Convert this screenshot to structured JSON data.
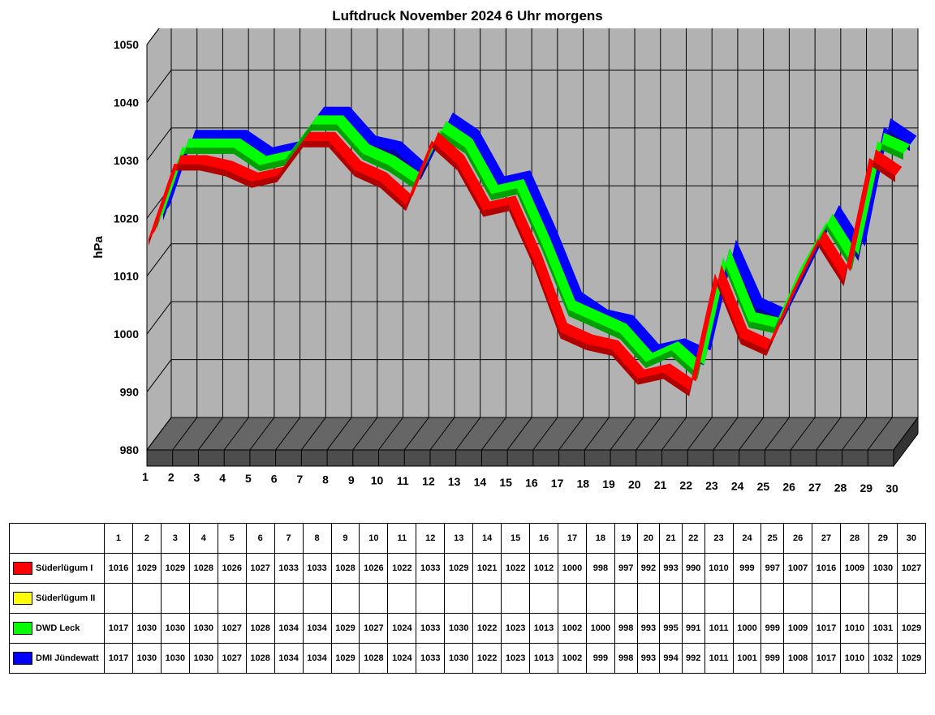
{
  "chart": {
    "title": "Luftdruck November 2024 6 Uhr morgens",
    "y_axis_label": "hPa",
    "y_min": 980,
    "y_max": 1050,
    "y_tick_step": 10,
    "y_ticks": [
      980,
      990,
      1000,
      1010,
      1020,
      1030,
      1040,
      1050
    ],
    "x_categories": [
      1,
      2,
      3,
      4,
      5,
      6,
      7,
      8,
      9,
      10,
      11,
      12,
      13,
      14,
      15,
      16,
      17,
      18,
      19,
      20,
      21,
      22,
      23,
      24,
      25,
      26,
      27,
      28,
      29,
      30
    ],
    "type": "3d-line",
    "background_color": "#b2b2b2",
    "floor_color": "#666666",
    "grid_color": "#000000",
    "title_fontsize": 17,
    "label_fontsize": 15,
    "tick_fontsize": 14,
    "line_width": 10,
    "perspective_depth": 30,
    "series": [
      {
        "name": "Süderlügum I",
        "color": "#ff0000",
        "color_dark": "#b00000",
        "data": [
          1016,
          1029,
          1029,
          1028,
          1026,
          1027,
          1033,
          1033,
          1028,
          1026,
          1022,
          1033,
          1029,
          1021,
          1022,
          1012,
          1000,
          998,
          997,
          992,
          993,
          990,
          1010,
          999,
          997,
          1007,
          1016,
          1009,
          1030,
          1027
        ]
      },
      {
        "name": "Süderlügum II",
        "color": "#ffff00",
        "color_dark": "#c0c000",
        "data": []
      },
      {
        "name": "DWD Leck",
        "color": "#00ff00",
        "color_dark": "#00a000",
        "data": [
          1017,
          1030,
          1030,
          1030,
          1027,
          1028,
          1034,
          1034,
          1029,
          1027,
          1024,
          1033,
          1030,
          1022,
          1023,
          1013,
          1002,
          1000,
          998,
          993,
          995,
          991,
          1011,
          1000,
          999,
          1009,
          1017,
          1010,
          1031,
          1029
        ]
      },
      {
        "name": "DMI Jündewatt",
        "color": "#0000ff",
        "color_dark": "#0000a0",
        "data": [
          1017,
          1030,
          1030,
          1030,
          1027,
          1028,
          1034,
          1034,
          1029,
          1028,
          1024,
          1033,
          1030,
          1022,
          1023,
          1013,
          1002,
          999,
          998,
          993,
          994,
          992,
          1011,
          1001,
          999,
          1008,
          1017,
          1010,
          1032,
          1029
        ]
      }
    ]
  }
}
